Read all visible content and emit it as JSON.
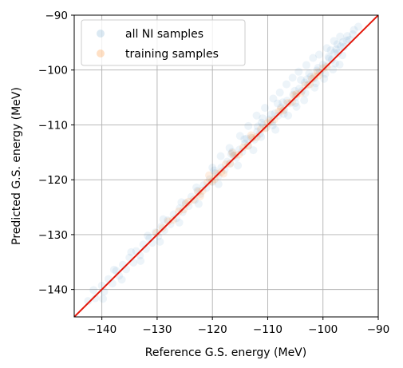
{
  "chart_data": {
    "type": "scatter",
    "xlabel": "Reference G.S. energy  (MeV)",
    "ylabel": "Predicted G.S. energy  (MeV)",
    "xlim": [
      -145,
      -90
    ],
    "ylim": [
      -145,
      -90
    ],
    "xticks": [
      -140,
      -130,
      -120,
      -110,
      -100,
      -90
    ],
    "yticks": [
      -140,
      -130,
      -120,
      -110,
      -100,
      -90
    ],
    "xtick_labels": [
      "−140",
      "−130",
      "−120",
      "−110",
      "−100",
      "−90"
    ],
    "ytick_labels": [
      "−140",
      "−130",
      "−120",
      "−110",
      "−100",
      "−90"
    ],
    "grid": true,
    "legend_position": "top-left",
    "series": [
      {
        "name": "all NI samples",
        "color": "#1f77b4",
        "opacity": 0.08,
        "points": [
          [
            -142.5,
            -142.1
          ],
          [
            -141.2,
            -141.6
          ],
          [
            -140.0,
            -139.3
          ],
          [
            -139.6,
            -140.4
          ],
          [
            -138.8,
            -138.1
          ],
          [
            -138.1,
            -138.9
          ],
          [
            -137.4,
            -136.6
          ],
          [
            -136.9,
            -137.5
          ],
          [
            -136.2,
            -135.5
          ],
          [
            -135.6,
            -136.3
          ],
          [
            -135.0,
            -134.2
          ],
          [
            -134.3,
            -135.1
          ],
          [
            -133.8,
            -133.0
          ],
          [
            -133.1,
            -133.8
          ],
          [
            -132.5,
            -131.8
          ],
          [
            -132.0,
            -132.6
          ],
          [
            -131.4,
            -130.7
          ],
          [
            -130.9,
            -131.5
          ],
          [
            -130.3,
            -129.6
          ],
          [
            -129.8,
            -130.3
          ],
          [
            -129.2,
            -128.5
          ],
          [
            -128.7,
            -129.2
          ],
          [
            -128.1,
            -127.4
          ],
          [
            -127.6,
            -128.1
          ],
          [
            -127.0,
            -126.3
          ],
          [
            -126.5,
            -127.0
          ],
          [
            -125.9,
            -125.2
          ],
          [
            -125.4,
            -125.9
          ],
          [
            -124.8,
            -124.2
          ],
          [
            -124.3,
            -124.8
          ],
          [
            -123.8,
            -123.1
          ],
          [
            -123.2,
            -123.7
          ],
          [
            -122.7,
            -122.0
          ],
          [
            -122.2,
            -122.6
          ],
          [
            -121.6,
            -121.0
          ],
          [
            -121.1,
            -121.5
          ],
          [
            -120.5,
            -119.9
          ],
          [
            -120.0,
            -120.4
          ],
          [
            -119.5,
            -118.8
          ],
          [
            -118.9,
            -119.3
          ],
          [
            -118.4,
            -117.8
          ],
          [
            -117.8,
            -118.2
          ],
          [
            -117.3,
            -116.7
          ],
          [
            -116.8,
            -117.1
          ],
          [
            -116.2,
            -115.6
          ],
          [
            -115.7,
            -116.0
          ],
          [
            -115.1,
            -114.5
          ],
          [
            -114.6,
            -114.9
          ],
          [
            -114.1,
            -113.4
          ],
          [
            -113.5,
            -113.8
          ],
          [
            -113.0,
            -112.3
          ],
          [
            -112.4,
            -112.7
          ],
          [
            -111.9,
            -111.2
          ],
          [
            -111.4,
            -111.6
          ],
          [
            -110.8,
            -110.1
          ],
          [
            -110.3,
            -110.5
          ],
          [
            -109.7,
            -109.0
          ],
          [
            -109.2,
            -109.4
          ],
          [
            -108.7,
            -107.9
          ],
          [
            -108.1,
            -108.3
          ],
          [
            -107.6,
            -106.8
          ],
          [
            -107.0,
            -107.2
          ],
          [
            -106.5,
            -105.6
          ],
          [
            -106.0,
            -106.1
          ],
          [
            -105.4,
            -104.5
          ],
          [
            -104.9,
            -104.9
          ],
          [
            -104.3,
            -103.4
          ],
          [
            -103.8,
            -103.8
          ],
          [
            -103.3,
            -102.3
          ],
          [
            -102.7,
            -102.7
          ],
          [
            -102.2,
            -101.2
          ],
          [
            -101.6,
            -101.5
          ],
          [
            -101.1,
            -100.1
          ],
          [
            -100.6,
            -100.4
          ],
          [
            -100.0,
            -99.0
          ],
          [
            -99.5,
            -99.2
          ],
          [
            -98.9,
            -97.9
          ],
          [
            -98.4,
            -98.1
          ],
          [
            -97.9,
            -96.8
          ],
          [
            -97.3,
            -96.9
          ],
          [
            -96.8,
            -95.7
          ],
          [
            -96.2,
            -95.8
          ],
          [
            -95.7,
            -94.6
          ],
          [
            -95.2,
            -94.5
          ],
          [
            -94.6,
            -93.5
          ],
          [
            -120.0,
            -117.8
          ],
          [
            -118.5,
            -115.7
          ],
          [
            -116.9,
            -114.2
          ],
          [
            -115.0,
            -112.0
          ],
          [
            -113.5,
            -110.2
          ],
          [
            -112.0,
            -108.3
          ],
          [
            -110.5,
            -106.9
          ],
          [
            -109.0,
            -105.2
          ],
          [
            -107.8,
            -104.1
          ],
          [
            -106.6,
            -102.6
          ],
          [
            -105.5,
            -101.4
          ],
          [
            -104.4,
            -100.3
          ],
          [
            -103.0,
            -99.1
          ],
          [
            -101.8,
            -97.8
          ],
          [
            -100.7,
            -97.2
          ],
          [
            -99.3,
            -96.0
          ],
          [
            -98.0,
            -94.7
          ],
          [
            -96.9,
            -93.9
          ],
          [
            -97.4,
            -95.3
          ],
          [
            -98.6,
            -96.4
          ],
          [
            -104.0,
            -101.8
          ],
          [
            -102.5,
            -100.6
          ],
          [
            -108.2,
            -106.1
          ],
          [
            -110.9,
            -108.8
          ],
          [
            -111.8,
            -110.3
          ],
          [
            -114.2,
            -112.6
          ],
          [
            -116.4,
            -114.9
          ],
          [
            -108.6,
            -110.9
          ],
          [
            -106.3,
            -108.3
          ],
          [
            -104.8,
            -106.7
          ],
          [
            -103.4,
            -105.5
          ],
          [
            -101.5,
            -103.2
          ],
          [
            -99.8,
            -101.6
          ],
          [
            -98.2,
            -99.9
          ],
          [
            -97.0,
            -99.0
          ],
          [
            -112.6,
            -114.6
          ],
          [
            -115.4,
            -117.4
          ],
          [
            -118.9,
            -120.8
          ],
          [
            -122.5,
            -124.4
          ],
          [
            -126.0,
            -127.8
          ],
          [
            -129.5,
            -131.3
          ],
          [
            -133.0,
            -134.8
          ],
          [
            -136.4,
            -138.2
          ],
          [
            -139.8,
            -141.7
          ],
          [
            -141.5,
            -140.1
          ],
          [
            -137.8,
            -136.4
          ],
          [
            -134.7,
            -133.2
          ],
          [
            -131.7,
            -130.2
          ],
          [
            -128.9,
            -127.2
          ],
          [
            -125.6,
            -124.1
          ],
          [
            -122.9,
            -121.4
          ],
          [
            -119.7,
            -118.3
          ],
          [
            -116.6,
            -115.3
          ],
          [
            -113.8,
            -112.5
          ],
          [
            -111.1,
            -109.6
          ],
          [
            -109.4,
            -108.1
          ],
          [
            -107.3,
            -105.9
          ],
          [
            -105.1,
            -103.8
          ],
          [
            -102.9,
            -101.7
          ],
          [
            -100.9,
            -99.6
          ],
          [
            -99.0,
            -97.6
          ],
          [
            -97.6,
            -96.2
          ],
          [
            -96.4,
            -94.9
          ],
          [
            -95.6,
            -93.8
          ],
          [
            -94.4,
            -92.7
          ],
          [
            -93.6,
            -92.1
          ],
          [
            -96.5,
            -97.3
          ],
          [
            -97.8,
            -98.8
          ],
          [
            -99.6,
            -100.7
          ],
          [
            -101.3,
            -102.4
          ],
          [
            -103.2,
            -104.2
          ],
          [
            -105.0,
            -106.0
          ],
          [
            -107.1,
            -108.0
          ],
          [
            -109.1,
            -110.1
          ],
          [
            -111.2,
            -112.2
          ]
        ]
      },
      {
        "name": "training samples",
        "color": "#ff7f0e",
        "opacity": 0.12,
        "points": [
          [
            -130.1,
            -129.7
          ],
          [
            -129.0,
            -128.8
          ],
          [
            -128.0,
            -127.6
          ],
          [
            -127.1,
            -127.3
          ],
          [
            -126.1,
            -125.8
          ],
          [
            -125.2,
            -125.4
          ],
          [
            -124.3,
            -124.0
          ],
          [
            -123.4,
            -123.6
          ],
          [
            -122.6,
            -122.2
          ],
          [
            -121.8,
            -122.0
          ],
          [
            -120.9,
            -120.5
          ],
          [
            -120.1,
            -120.3
          ],
          [
            -119.2,
            -118.9
          ],
          [
            -118.4,
            -118.6
          ],
          [
            -117.6,
            -117.2
          ],
          [
            -116.8,
            -117.0
          ],
          [
            -116.0,
            -115.6
          ],
          [
            -115.2,
            -115.4
          ],
          [
            -114.4,
            -114.1
          ],
          [
            -113.6,
            -113.8
          ],
          [
            -112.8,
            -112.4
          ],
          [
            -112.0,
            -112.2
          ],
          [
            -111.2,
            -110.8
          ],
          [
            -110.4,
            -110.6
          ],
          [
            -109.6,
            -109.3
          ],
          [
            -108.8,
            -109.0
          ],
          [
            -108.0,
            -107.6
          ],
          [
            -107.2,
            -107.4
          ],
          [
            -106.4,
            -106.0
          ],
          [
            -105.6,
            -105.8
          ],
          [
            -104.8,
            -104.4
          ],
          [
            -104.0,
            -104.2
          ],
          [
            -103.2,
            -102.8
          ],
          [
            -102.4,
            -102.6
          ],
          [
            -101.6,
            -101.2
          ],
          [
            -100.8,
            -101.0
          ],
          [
            -100.0,
            -99.7
          ],
          [
            -99.3,
            -99.4
          ],
          [
            -120.6,
            -119.2
          ],
          [
            -118.0,
            -118.9
          ],
          [
            -122.2,
            -123.0
          ],
          [
            -124.8,
            -124.4
          ],
          [
            -113.0,
            -111.9
          ],
          [
            -110.0,
            -109.7
          ],
          [
            -107.6,
            -107.1
          ],
          [
            -105.2,
            -104.6
          ],
          [
            -102.0,
            -101.6
          ],
          [
            -101.0,
            -100.4
          ],
          [
            -116.4,
            -115.1
          ],
          [
            -119.6,
            -119.9
          ]
        ]
      }
    ],
    "reference_line": {
      "from": [
        -145,
        -145
      ],
      "to": [
        -90,
        -90
      ],
      "color": "#e3170a"
    }
  }
}
